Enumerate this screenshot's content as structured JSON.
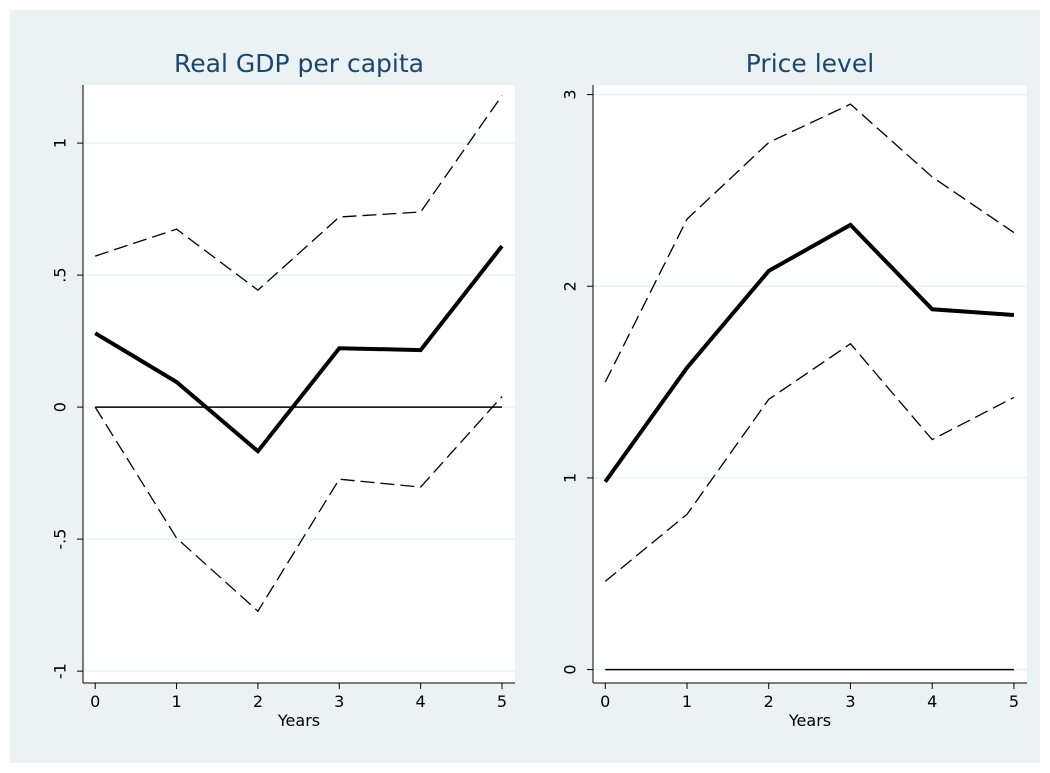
{
  "chart_data": [
    {
      "type": "line",
      "title": "Real GDP per capita",
      "xlabel": "Years",
      "x": [
        0,
        1,
        2,
        3,
        4,
        5
      ],
      "xlim": [
        -0.15,
        5.16
      ],
      "xticks": [
        0,
        1,
        2,
        3,
        4,
        5
      ],
      "ylim": [
        -1.045,
        1.22
      ],
      "yticks": [
        -1,
        {
          "value": -0.5,
          "label": "-.5"
        },
        0,
        {
          "value": 0.5,
          "label": ".5"
        },
        1
      ],
      "grid": true,
      "yline": 0,
      "series": [
        {
          "color": "#000000",
          "style": "thick",
          "values": [
            0.28,
            0.095,
            -0.167,
            0.223,
            0.216,
            0.61
          ]
        },
        {
          "color": "#000000",
          "style": "dashed",
          "values": [
            0.572,
            0.674,
            0.443,
            0.72,
            0.739,
            1.18
          ]
        },
        {
          "color": "#000000",
          "style": "dashed",
          "values": [
            0,
            -0.496,
            -0.773,
            -0.273,
            -0.303,
            0.04
          ]
        }
      ]
    },
    {
      "type": "line",
      "title": "Price level",
      "xlabel": "Years",
      "x": [
        0,
        1,
        2,
        3,
        4,
        5
      ],
      "xlim": [
        -0.15,
        5.16
      ],
      "xticks": [
        0,
        1,
        2,
        3,
        4,
        5
      ],
      "ylim": [
        -0.07,
        3.05
      ],
      "yticks": [
        0,
        1,
        2,
        3
      ],
      "grid": true,
      "yline": 0,
      "series": [
        {
          "color": "#000000",
          "style": "thick",
          "values": [
            0.98,
            1.575,
            2.08,
            2.32,
            1.88,
            1.85
          ]
        },
        {
          "color": "#000000",
          "style": "dashed",
          "values": [
            1.5,
            2.35,
            2.75,
            2.95,
            2.57,
            2.28
          ]
        },
        {
          "color": "#000000",
          "style": "dashed",
          "values": [
            0.46,
            0.81,
            1.41,
            1.7,
            1.2,
            1.42
          ]
        }
      ]
    }
  ]
}
